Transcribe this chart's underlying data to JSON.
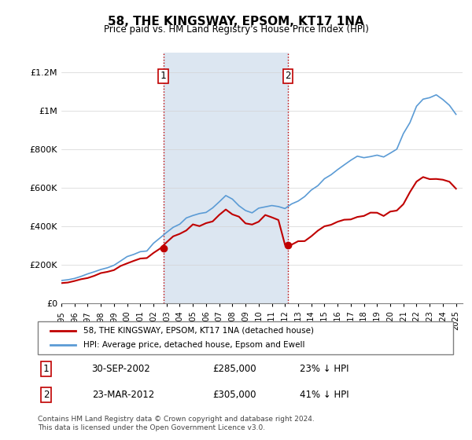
{
  "title": "58, THE KINGSWAY, EPSOM, KT17 1NA",
  "subtitle": "Price paid vs. HM Land Registry's House Price Index (HPI)",
  "legend_line1": "58, THE KINGSWAY, EPSOM, KT17 1NA (detached house)",
  "legend_line2": "HPI: Average price, detached house, Epsom and Ewell",
  "footnote": "Contains HM Land Registry data © Crown copyright and database right 2024.\nThis data is licensed under the Open Government Licence v3.0.",
  "sale1_label": "1",
  "sale1_date": "30-SEP-2002",
  "sale1_price": "£285,000",
  "sale1_hpi": "23% ↓ HPI",
  "sale2_label": "2",
  "sale2_date": "23-MAR-2012",
  "sale2_price": "£305,000",
  "sale2_hpi": "41% ↓ HPI",
  "hpi_color": "#5b9bd5",
  "price_color": "#c00000",
  "marker_color": "#c00000",
  "shade_color": "#dce6f1",
  "ylim": [
    0,
    1300000
  ],
  "yticks": [
    0,
    200000,
    400000,
    600000,
    800000,
    1000000,
    1200000
  ],
  "ylabel_format": [
    "0",
    "200K",
    "400K",
    "600K",
    "800K",
    "1M",
    "1.2M"
  ],
  "sale1_x": 2002.75,
  "sale1_y": 285000,
  "sale2_x": 2012.23,
  "sale2_y": 305000,
  "vline1_x": 2002.75,
  "vline2_x": 2012.23,
  "xlim_left": 1995.0,
  "xlim_right": 2025.5
}
